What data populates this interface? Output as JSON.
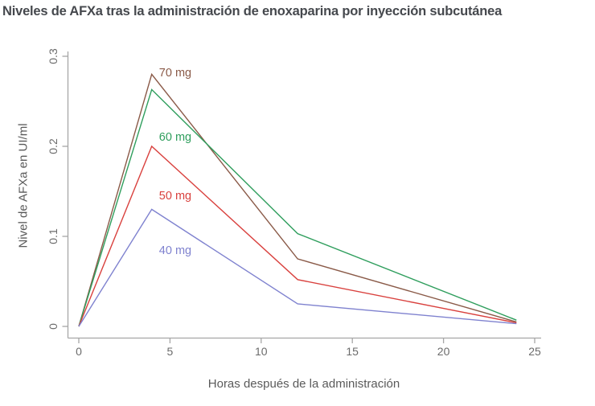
{
  "chart_data": {
    "type": "line",
    "title": "Niveles de AFXa tras la administración de enoxaparina por inyección subcutánea",
    "xlabel": "Horas después de la administración",
    "ylabel": "Nivel de AFXa en UI/ml",
    "x": [
      0,
      4,
      12,
      24
    ],
    "xlim": [
      0,
      25
    ],
    "ylim": [
      0,
      0.3
    ],
    "x_ticks": [
      0,
      5,
      10,
      15,
      20,
      25
    ],
    "x_tick_labels": [
      "0",
      "5",
      "10",
      "15",
      "20",
      "25"
    ],
    "y_ticks": [
      0,
      0.1,
      0.2,
      0.3
    ],
    "y_tick_labels": [
      "0",
      "0.1",
      "0.2",
      "0.3"
    ],
    "grid": false,
    "legend_position": "inline-labels-right-of-peak",
    "series": [
      {
        "name": "70 mg",
        "color": "#8a5a48",
        "values": [
          0,
          0.28,
          0.075,
          0.005
        ],
        "label_pos": {
          "x": 4.4,
          "y": 0.281
        }
      },
      {
        "name": "60 mg",
        "color": "#2f9e5d",
        "values": [
          0,
          0.263,
          0.103,
          0.007
        ],
        "label_pos": {
          "x": 4.4,
          "y": 0.21
        }
      },
      {
        "name": "50 mg",
        "color": "#d9413e",
        "values": [
          0,
          0.2,
          0.052,
          0.004
        ],
        "label_pos": {
          "x": 4.4,
          "y": 0.145
        }
      },
      {
        "name": "40 mg",
        "color": "#7f82cf",
        "values": [
          0,
          0.13,
          0.025,
          0.003
        ],
        "label_pos": {
          "x": 4.4,
          "y": 0.084
        }
      }
    ],
    "colors": {
      "title_text": "#45484d",
      "axis_line": "#a6a6a6",
      "tick_text": "#6b6b6b",
      "axis_label_text": "#5a5a5a",
      "background": "#ffffff"
    }
  }
}
